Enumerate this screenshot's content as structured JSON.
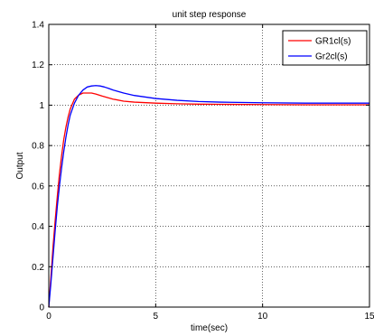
{
  "chart_data": {
    "type": "line",
    "title": "unit step response",
    "xlabel": "time(sec)",
    "ylabel": "Output",
    "xlim": [
      0,
      15
    ],
    "ylim": [
      0,
      1.4
    ],
    "xticks": [
      0,
      5,
      10,
      15
    ],
    "yticks": [
      0,
      0.2,
      0.4,
      0.6,
      0.8,
      1,
      1.2,
      1.4
    ],
    "xtick_labels": [
      "0",
      "5",
      "10",
      "15"
    ],
    "ytick_labels": [
      "0",
      "0.2",
      "0.4",
      "0.6",
      "0.8",
      "1",
      "1.2",
      "1.4"
    ],
    "grid": true,
    "legend_position": "top-right",
    "series": [
      {
        "name": "GR1cl(s)",
        "color": "#ff0000",
        "x": [
          0,
          0.1,
          0.2,
          0.3,
          0.4,
          0.5,
          0.6,
          0.7,
          0.8,
          0.9,
          1.0,
          1.2,
          1.4,
          1.6,
          1.8,
          2.0,
          2.2,
          2.5,
          3.0,
          3.5,
          4.0,
          5.0,
          6.0,
          7.0,
          8.0,
          10.0,
          12.0,
          15.0
        ],
        "values": [
          0,
          0.15,
          0.3,
          0.43,
          0.55,
          0.66,
          0.75,
          0.83,
          0.89,
          0.94,
          0.98,
          1.03,
          1.05,
          1.06,
          1.06,
          1.06,
          1.055,
          1.045,
          1.03,
          1.02,
          1.015,
          1.01,
          1.007,
          1.005,
          1.004,
          1.003,
          1.002,
          1.002
        ]
      },
      {
        "name": "Gr2cl(s)",
        "color": "#0000ff",
        "x": [
          0,
          0.1,
          0.2,
          0.3,
          0.4,
          0.5,
          0.6,
          0.7,
          0.8,
          0.9,
          1.0,
          1.2,
          1.4,
          1.6,
          1.8,
          2.0,
          2.2,
          2.4,
          2.6,
          2.8,
          3.0,
          3.5,
          4.0,
          5.0,
          6.0,
          7.0,
          8.0,
          10.0,
          12.0,
          15.0
        ],
        "values": [
          0,
          0.12,
          0.25,
          0.38,
          0.5,
          0.6,
          0.69,
          0.77,
          0.84,
          0.9,
          0.95,
          1.01,
          1.05,
          1.075,
          1.09,
          1.095,
          1.097,
          1.095,
          1.09,
          1.083,
          1.075,
          1.06,
          1.048,
          1.033,
          1.024,
          1.018,
          1.015,
          1.012,
          1.01,
          1.01
        ]
      }
    ]
  }
}
